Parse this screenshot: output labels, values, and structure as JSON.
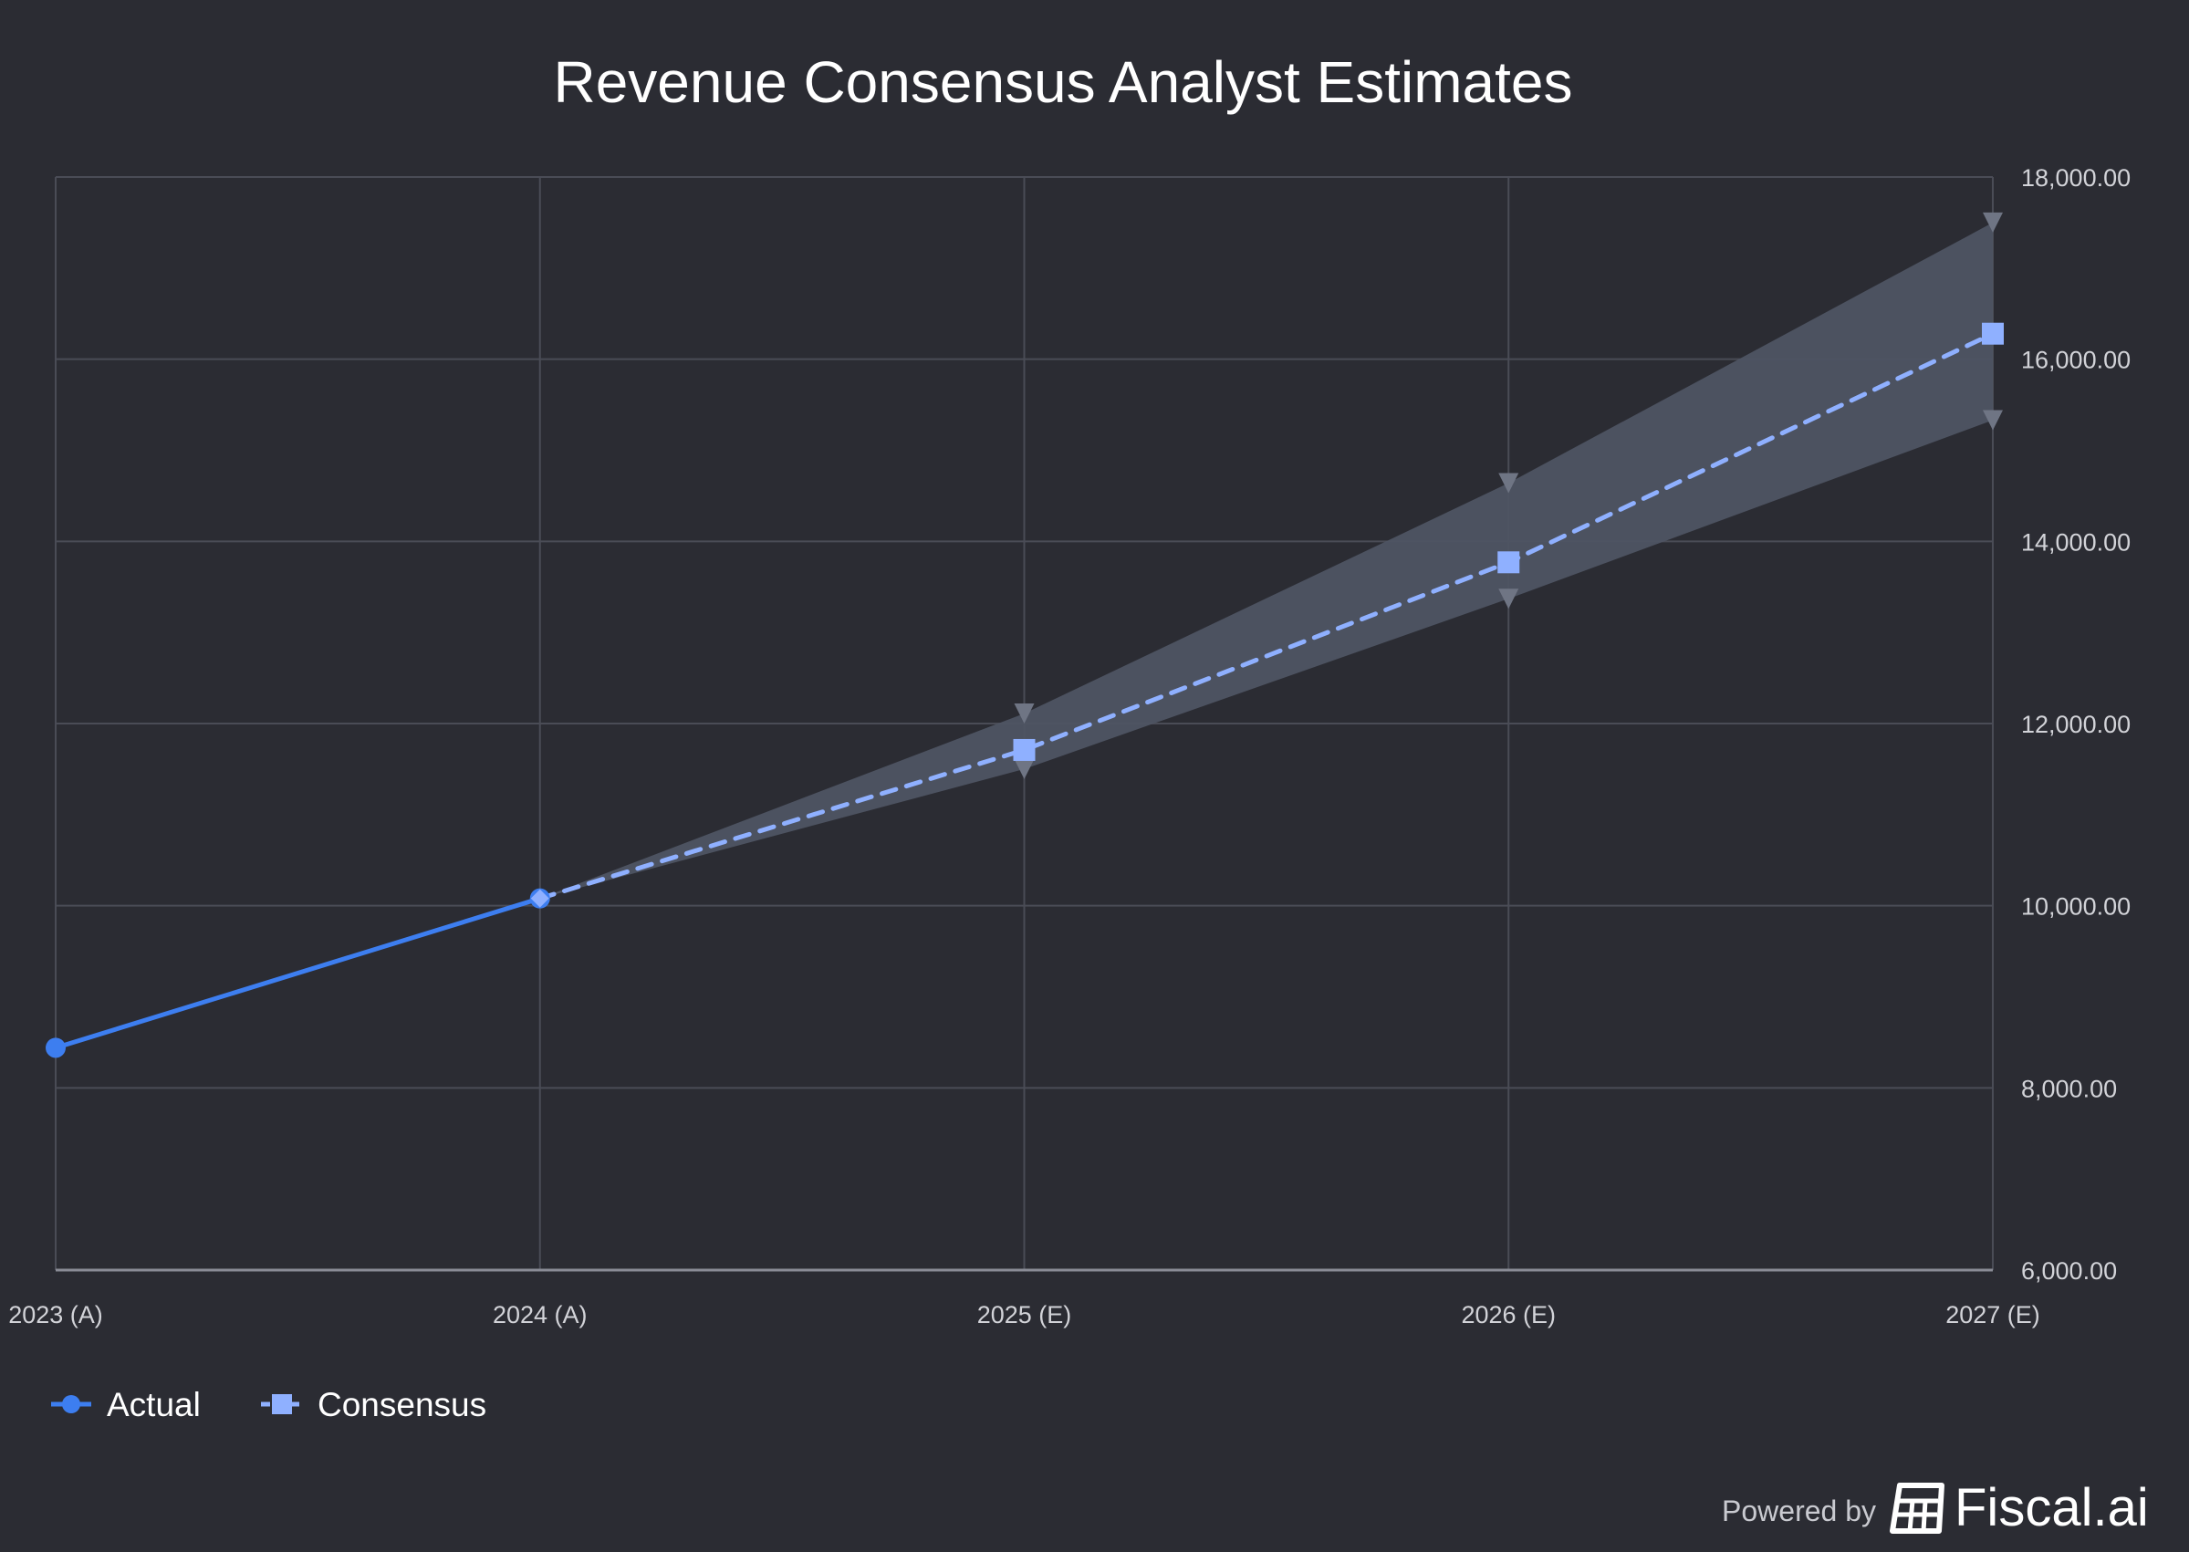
{
  "chart_data": {
    "type": "line",
    "title": "Revenue Consensus Analyst Estimates",
    "categories": [
      "2023 (A)",
      "2024 (A)",
      "2025 (E)",
      "2026 (E)",
      "2027 (E)"
    ],
    "ylim": [
      6000,
      18000
    ],
    "yticks": [
      6000,
      8000,
      10000,
      12000,
      14000,
      16000,
      18000
    ],
    "ytick_labels": [
      "6,000.00",
      "8,000.00",
      "10,000.00",
      "12,000.00",
      "14,000.00",
      "16,000.00",
      "18,000.00"
    ],
    "y_axis_position": "right",
    "grid": true,
    "legend_position": "bottom-left",
    "series": [
      {
        "name": "Actual",
        "values": [
          8440,
          10080,
          null,
          null,
          null
        ],
        "color": "#3d7ef0",
        "line_style": "solid",
        "marker": "circle"
      },
      {
        "name": "Consensus",
        "values": [
          null,
          10080,
          11710,
          13770,
          16280
        ],
        "color": "#8fb0ff",
        "line_style": "dashed",
        "marker": "square"
      }
    ],
    "range": {
      "high": [
        null,
        10080,
        12110,
        14640,
        17500
      ],
      "low": [
        null,
        10080,
        11500,
        13370,
        15330
      ],
      "fill_color": "#4e5463",
      "marker": "triangle-down",
      "marker_color": "#6f7584"
    }
  },
  "credit": {
    "powered_by": "Powered by",
    "brand": "Fiscal.ai",
    "logo_icon": "receipt-grid-icon"
  },
  "colors": {
    "background": "#2b2c33",
    "grid": "#4a4c56",
    "axis": "#8a8c96"
  }
}
